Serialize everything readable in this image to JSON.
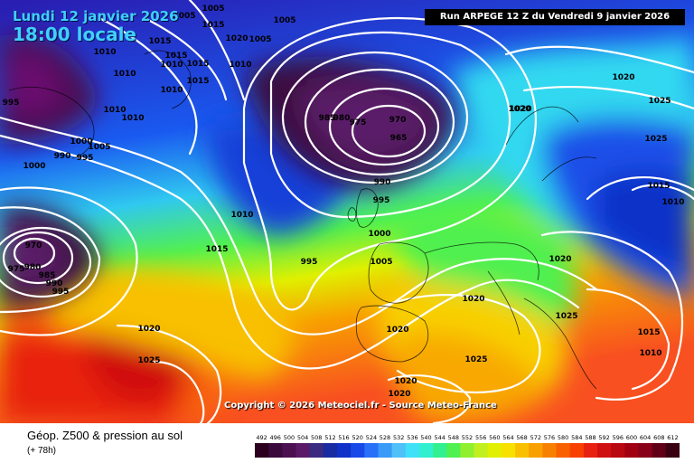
{
  "header": {
    "date_line": "Lundi 12 janvier 2026",
    "time_line": "18:00 locale",
    "run_info": "Run ARPEGE 12 Z du Vendredi 9 janvier 2026"
  },
  "copyright": "Copyright © 2026 Meteociel.fr - Source Meteo-France",
  "footer": {
    "title": "Géop. Z500 & pression au sol",
    "subtitle": "(+ 78h)"
  },
  "legend": {
    "values": [
      "492",
      "496",
      "500",
      "504",
      "508",
      "512",
      "516",
      "520",
      "524",
      "528",
      "532",
      "536",
      "540",
      "544",
      "548",
      "552",
      "556",
      "560",
      "564",
      "568",
      "572",
      "576",
      "580",
      "584",
      "588",
      "592",
      "596",
      "600",
      "604",
      "608",
      "612"
    ],
    "colors": [
      "#2a001e",
      "#3a0a3c",
      "#4a1050",
      "#5a1a68",
      "#3a2a80",
      "#1a2aa0",
      "#1030c8",
      "#1848e8",
      "#2870f8",
      "#3a9af8",
      "#50c0f8",
      "#40e0f8",
      "#30f0d0",
      "#30f090",
      "#50f050",
      "#90f030",
      "#c0f020",
      "#e0f000",
      "#f8e000",
      "#f8c000",
      "#f8a000",
      "#f88000",
      "#f86000",
      "#f84000",
      "#e82010",
      "#d01010",
      "#b80810",
      "#a00010",
      "#880018",
      "#600018",
      "#380010"
    ]
  },
  "pressure_labels": [
    {
      "text": "1005"
    },
    {
      "text": "1005"
    },
    {
      "text": "1005"
    },
    {
      "text": "1015"
    },
    {
      "text": "1020"
    },
    {
      "text": "1005"
    },
    {
      "text": "1015"
    },
    {
      "text": "1010"
    },
    {
      "text": "1015"
    },
    {
      "text": "1010"
    },
    {
      "text": "1015"
    },
    {
      "text": "1010"
    },
    {
      "text": "1010"
    },
    {
      "text": "1015"
    },
    {
      "text": "1010"
    },
    {
      "text": "995"
    },
    {
      "text": "1010"
    },
    {
      "text": "1010"
    },
    {
      "text": "1000"
    },
    {
      "text": "1005"
    },
    {
      "text": "990"
    },
    {
      "text": "995"
    },
    {
      "text": "1000"
    },
    {
      "text": "985"
    },
    {
      "text": "980"
    },
    {
      "text": "975"
    },
    {
      "text": "970"
    },
    {
      "text": "965"
    },
    {
      "text": "990"
    },
    {
      "text": "995"
    },
    {
      "text": "1010"
    },
    {
      "text": "1000"
    },
    {
      "text": "1005"
    },
    {
      "text": "995"
    },
    {
      "text": "1015"
    },
    {
      "text": "970"
    },
    {
      "text": "975"
    },
    {
      "text": "980"
    },
    {
      "text": "985"
    },
    {
      "text": "990"
    },
    {
      "text": "995"
    },
    {
      "text": "1020"
    },
    {
      "text": "1025"
    },
    {
      "text": "1020"
    },
    {
      "text": "1020"
    },
    {
      "text": "1020"
    },
    {
      "text": "1025"
    },
    {
      "text": "1020"
    },
    {
      "text": "1020"
    },
    {
      "text": "1020"
    },
    {
      "text": "1020"
    },
    {
      "text": "1025"
    },
    {
      "text": "1025"
    },
    {
      "text": "1015"
    },
    {
      "text": "1010"
    },
    {
      "text": "1020"
    },
    {
      "text": "1025"
    },
    {
      "text": "1015"
    },
    {
      "text": "1010"
    }
  ]
}
